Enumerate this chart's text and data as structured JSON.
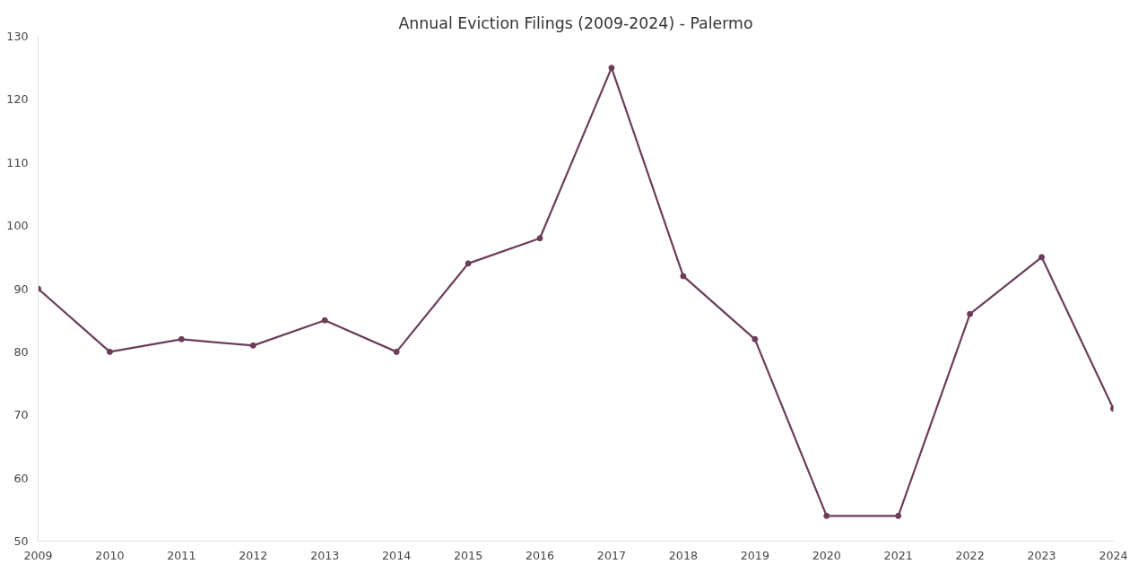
{
  "chart_data": {
    "type": "line",
    "title": "Annual Eviction Filings (2009-2024) - Palermo",
    "x": [
      2009,
      2010,
      2011,
      2012,
      2013,
      2014,
      2015,
      2016,
      2017,
      2018,
      2019,
      2020,
      2021,
      2022,
      2023,
      2024
    ],
    "series": [
      {
        "color": "#6b3d5a",
        "values": [
          90,
          80,
          82,
          81,
          85,
          80,
          94,
          98,
          125,
          92,
          82,
          54,
          54,
          86,
          95,
          71
        ]
      }
    ],
    "xlim": [
      2009,
      2024
    ],
    "xticks": [
      2009,
      2010,
      2011,
      2012,
      2013,
      2014,
      2015,
      2016,
      2017,
      2018,
      2019,
      2020,
      2021,
      2022,
      2023,
      2024
    ],
    "ylim": [
      50,
      130
    ],
    "yticks": [
      50,
      60,
      70,
      80,
      90,
      100,
      110,
      120,
      130
    ],
    "grid": false,
    "marker": "circle",
    "line_style": "solid"
  }
}
